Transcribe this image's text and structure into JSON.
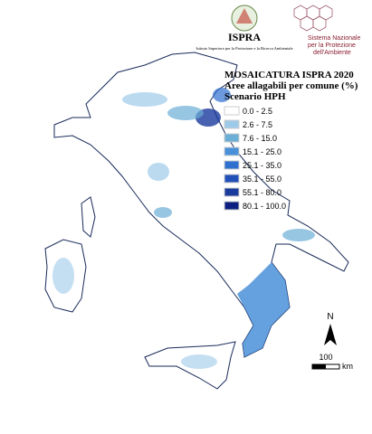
{
  "header": {
    "agency": "ISPRA",
    "agency_full": "Istituto Superiore per la Protezione e la Ricerca Ambientale",
    "network_line1": "Sistema Nazionale",
    "network_line2": "per la Protezione",
    "network_line3": "dell'Ambiente"
  },
  "legend": {
    "title_lines": [
      "MOSAICATURA ISPRA 2020",
      "Aree allagabili per comune (%)",
      "Scenario HPH"
    ],
    "items": [
      {
        "label": "0.0 - 2.5",
        "color": "#ffffff"
      },
      {
        "label": "2.6 - 7.5",
        "color": "#9ecae9"
      },
      {
        "label": "7.6 - 15.0",
        "color": "#6baed6"
      },
      {
        "label": "15.1 - 25.0",
        "color": "#4a90d9"
      },
      {
        "label": "25.1 - 35.0",
        "color": "#2f6fd0"
      },
      {
        "label": "35.1 - 55.0",
        "color": "#2050b8"
      },
      {
        "label": "55.1 - 80.0",
        "color": "#1a3a9c"
      },
      {
        "label": "80.1 - 100.0",
        "color": "#0c1f80"
      }
    ]
  },
  "north": "N",
  "scale": {
    "distance": "100",
    "unit": "km"
  }
}
